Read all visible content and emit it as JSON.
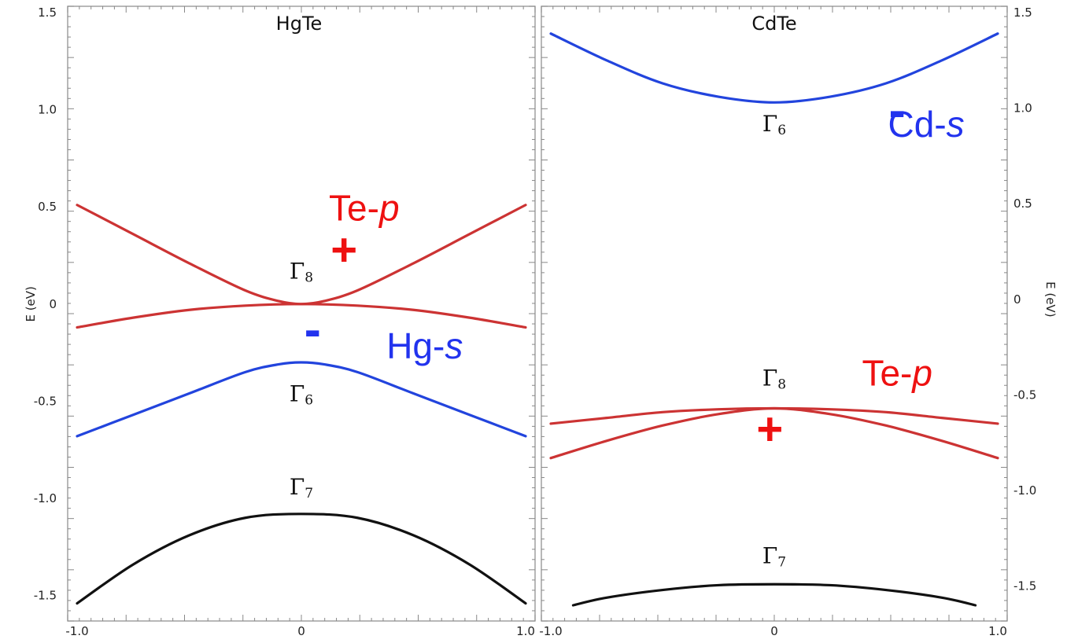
{
  "chart_data": [
    {
      "type": "line",
      "title": "HgTe",
      "xlabel": "",
      "ylabel": "E (eV)",
      "xlim": [
        -1.0,
        1.0
      ],
      "ylim": [
        -1.55,
        1.5
      ],
      "x_ticks": [
        "-1.0",
        "0",
        "1.0"
      ],
      "y_ticks": [
        "1.5",
        "1.0",
        "0.5",
        "0",
        "-0.5",
        "-1.0",
        "-1.5"
      ],
      "series": [
        {
          "color": "#cc3333",
          "x": [
            -1.0,
            -0.75,
            -0.5,
            -0.25,
            -0.1,
            0,
            0.1,
            0.25,
            0.5,
            0.75,
            1.0
          ],
          "y": [
            0.51,
            0.36,
            0.21,
            0.07,
            0.015,
            0.0,
            0.015,
            0.07,
            0.21,
            0.36,
            0.51
          ]
        },
        {
          "color": "#cc3333",
          "x": [
            -1.0,
            -0.75,
            -0.5,
            -0.25,
            0,
            0.25,
            0.5,
            0.75,
            1.0
          ],
          "y": [
            -0.12,
            -0.07,
            -0.03,
            -0.008,
            0.0,
            -0.008,
            -0.03,
            -0.07,
            -0.12
          ]
        },
        {
          "color": "#2244dd",
          "x": [
            -1.0,
            -0.75,
            -0.5,
            -0.25,
            -0.1,
            0,
            0.1,
            0.25,
            0.5,
            0.75,
            1.0
          ],
          "y": [
            -0.68,
            -0.57,
            -0.46,
            -0.35,
            -0.31,
            -0.3,
            -0.31,
            -0.35,
            -0.46,
            -0.57,
            -0.68
          ]
        },
        {
          "color": "#111111",
          "x": [
            -1.0,
            -0.75,
            -0.5,
            -0.25,
            0,
            0.25,
            0.5,
            0.75,
            1.0
          ],
          "y": [
            -1.54,
            -1.34,
            -1.19,
            -1.1,
            -1.08,
            -1.1,
            -1.19,
            -1.34,
            -1.54
          ]
        }
      ],
      "annotations": [
        {
          "text": "Te-",
          "italic": "p",
          "color": "#ee1111",
          "x": 0.28,
          "y": 0.43
        },
        {
          "text": "+",
          "color": "#ee1111",
          "x": 0.19,
          "y": 0.2
        },
        {
          "text": "-",
          "color": "#2233ee",
          "x": 0.05,
          "y": -0.22
        },
        {
          "text": "Hg-",
          "italic": "s",
          "color": "#2233ee",
          "x": 0.55,
          "y": -0.28
        },
        {
          "gamma": "8",
          "x": 0.0,
          "y": 0.13
        },
        {
          "gamma": "6",
          "x": 0.0,
          "y": -0.5
        },
        {
          "gamma": "7",
          "x": 0.0,
          "y": -0.98
        }
      ]
    },
    {
      "type": "line",
      "title": "CdTe",
      "xlabel": "",
      "ylabel": "E (eV)",
      "xlim": [
        -1.0,
        1.0
      ],
      "ylim": [
        -1.6,
        1.5
      ],
      "x_ticks": [
        "-1.0",
        "0",
        "1.0"
      ],
      "y_ticks": [
        "1.5",
        "1.0",
        "0.5",
        "0",
        "-0.5",
        "-1.0",
        "-1.5"
      ],
      "series": [
        {
          "color": "#2244dd",
          "x": [
            -1.0,
            -0.75,
            -0.5,
            -0.25,
            0,
            0.25,
            0.5,
            0.75,
            1.0
          ],
          "y": [
            1.39,
            1.25,
            1.13,
            1.06,
            1.03,
            1.06,
            1.13,
            1.25,
            1.39
          ]
        },
        {
          "color": "#cc3333",
          "x": [
            -1.0,
            -0.75,
            -0.5,
            -0.25,
            0,
            0.25,
            0.5,
            0.75,
            1.0
          ],
          "y": [
            -0.65,
            -0.62,
            -0.59,
            -0.575,
            -0.57,
            -0.575,
            -0.59,
            -0.62,
            -0.65
          ]
        },
        {
          "color": "#cc3333",
          "x": [
            -1.0,
            -0.75,
            -0.5,
            -0.25,
            0,
            0.25,
            0.5,
            0.75,
            1.0
          ],
          "y": [
            -0.83,
            -0.74,
            -0.66,
            -0.6,
            -0.57,
            -0.6,
            -0.66,
            -0.74,
            -0.83
          ]
        },
        {
          "color": "#111111",
          "x": [
            -0.9,
            -0.75,
            -0.5,
            -0.25,
            0,
            0.25,
            0.5,
            0.75,
            0.9
          ],
          "y": [
            -1.6,
            -1.56,
            -1.52,
            -1.495,
            -1.49,
            -1.495,
            -1.52,
            -1.56,
            -1.6
          ]
        }
      ],
      "annotations": [
        {
          "text": "Cd-",
          "italic": "s",
          "color": "#2233ee",
          "x": 0.68,
          "y": 0.85
        },
        {
          "text": "-",
          "color": "#2233ee",
          "x": 0.55,
          "y": 0.9
        },
        {
          "gamma": "6",
          "x": 0.0,
          "y": 0.88
        },
        {
          "text": "Te-",
          "italic": "p",
          "color": "#ee1111",
          "x": 0.55,
          "y": -0.45
        },
        {
          "gamma": "8",
          "x": 0.0,
          "y": -0.45
        },
        {
          "text": "+",
          "color": "#ee1111",
          "x": -0.02,
          "y": -0.76
        },
        {
          "gamma": "7",
          "x": 0.0,
          "y": -1.38
        }
      ]
    }
  ]
}
